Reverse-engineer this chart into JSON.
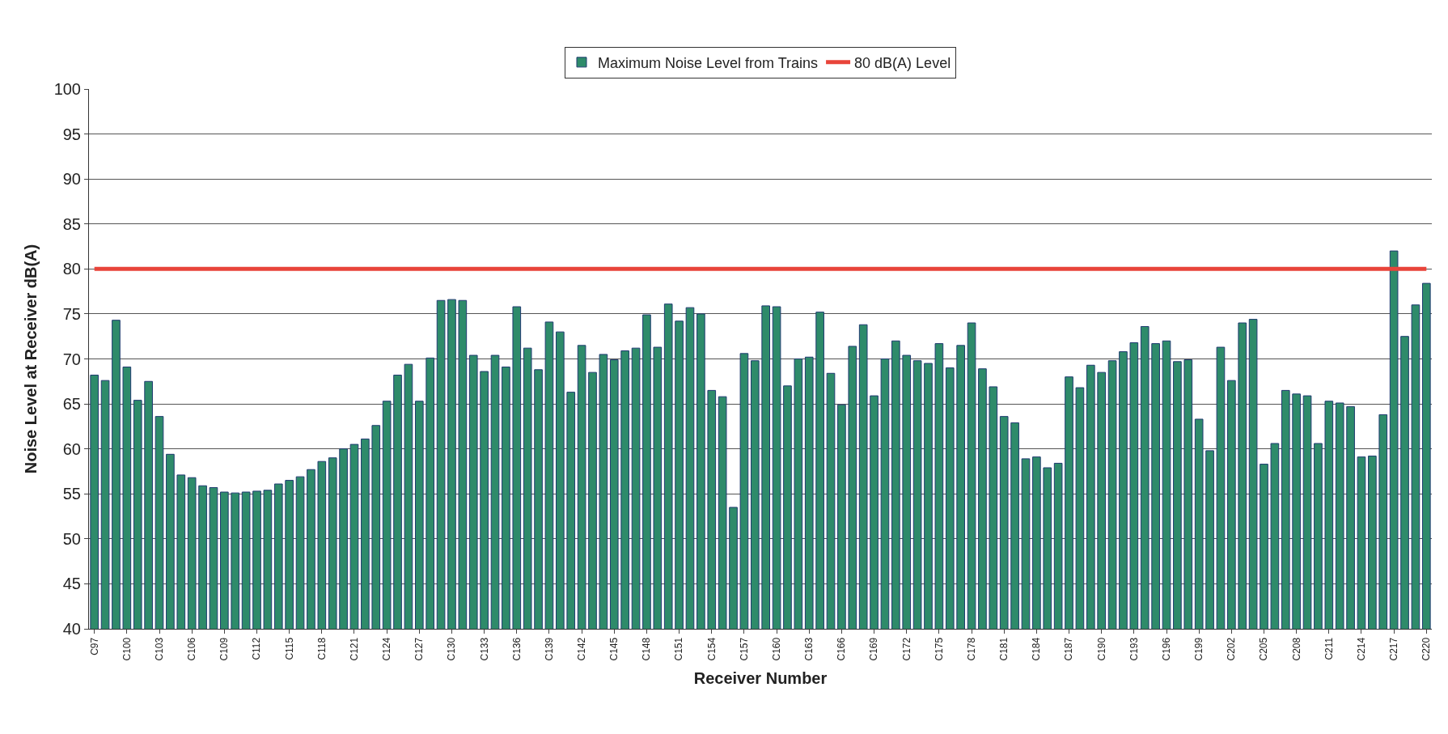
{
  "chart_data": {
    "type": "bar",
    "xlabel": "Receiver Number",
    "ylabel": "Noise Level at Receiver dB(A)",
    "categories": [
      "C97",
      null,
      null,
      "C100",
      null,
      null,
      "C103",
      null,
      null,
      "C106",
      null,
      null,
      "C109",
      null,
      null,
      "C112",
      null,
      null,
      "C115",
      null,
      null,
      "C118",
      null,
      null,
      "C121",
      null,
      null,
      "C124",
      null,
      null,
      "C127",
      null,
      null,
      "C130",
      null,
      null,
      "C133",
      null,
      null,
      "C136",
      null,
      null,
      "C139",
      null,
      null,
      "C142",
      null,
      null,
      "C145",
      null,
      null,
      "C148",
      null,
      null,
      "C151",
      null,
      null,
      "C154",
      null,
      null,
      "C157",
      null,
      null,
      "C160",
      null,
      null,
      "C163",
      null,
      null,
      "C166",
      null,
      null,
      "C169",
      null,
      null,
      "C172",
      null,
      null,
      "C175",
      null,
      null,
      "C178",
      null,
      null,
      "C181",
      null,
      null,
      "C184",
      null,
      null,
      "C187",
      null,
      null,
      "C190",
      null,
      null,
      "C193",
      null,
      null,
      "C196",
      null,
      null,
      "C199",
      null,
      null,
      "C202",
      null,
      null,
      "C205",
      null,
      null,
      "C208",
      null,
      null,
      "C211",
      null,
      null,
      "C214",
      null,
      null,
      "C217",
      null,
      null,
      "C220"
    ],
    "series": [
      {
        "name": "Maximum Noise Level from Trains",
        "color": "#2e8b6a",
        "values": [
          68.2,
          67.6,
          74.3,
          69.1,
          65.4,
          67.5,
          63.6,
          59.4,
          57.1,
          56.8,
          55.9,
          55.7,
          55.2,
          55.1,
          55.2,
          55.3,
          55.4,
          56.1,
          56.5,
          56.9,
          57.7,
          58.6,
          59.0,
          60.0,
          60.5,
          61.1,
          62.6,
          65.3,
          68.2,
          69.4,
          65.3,
          70.1,
          76.5,
          76.6,
          76.5,
          70.4,
          68.6,
          70.4,
          69.1,
          75.8,
          71.2,
          68.8,
          74.1,
          73.0,
          66.3,
          71.5,
          68.5,
          70.5,
          69.9,
          70.9,
          71.2,
          74.9,
          71.3,
          76.1,
          74.2,
          75.7,
          75.0,
          66.5,
          65.8,
          53.5,
          70.6,
          69.8,
          75.9,
          75.8,
          67.0,
          70.0,
          70.2,
          75.2,
          68.4,
          64.9,
          71.4,
          73.8,
          65.9,
          70.0,
          72.0,
          70.4,
          69.8,
          69.5,
          71.7,
          69.0,
          71.5,
          74.0,
          68.9,
          66.9,
          63.6,
          62.9,
          58.9,
          59.1,
          57.9,
          58.4,
          68.0,
          66.8,
          69.3,
          68.5,
          69.8,
          70.8,
          71.8,
          73.6,
          71.7,
          72.0,
          69.7,
          69.9,
          63.3,
          59.8,
          71.3,
          67.6,
          74.0,
          74.4,
          58.3,
          60.6,
          66.5,
          66.1,
          65.9,
          60.6,
          65.3,
          65.1,
          64.7,
          59.1,
          59.2,
          63.8,
          82.0,
          72.5,
          76.0,
          78.4
        ]
      },
      {
        "name": "80 dB(A) Level",
        "type": "line",
        "color": "#e8443a",
        "values": [
          80,
          80,
          80,
          80,
          80,
          80,
          80,
          80,
          80,
          80,
          80,
          80,
          80,
          80,
          80,
          80,
          80,
          80,
          80,
          80,
          80,
          80,
          80,
          80,
          80,
          80,
          80,
          80,
          80,
          80,
          80,
          80,
          80,
          80,
          80,
          80,
          80,
          80,
          80,
          80,
          80,
          80,
          80,
          80,
          80,
          80,
          80,
          80,
          80,
          80,
          80,
          80,
          80,
          80,
          80,
          80,
          80,
          80,
          80,
          80,
          80,
          80,
          80,
          80,
          80,
          80,
          80,
          80,
          80,
          80,
          80,
          80,
          80,
          80,
          80,
          80,
          80,
          80,
          80,
          80,
          80,
          80,
          80,
          80,
          80,
          80,
          80,
          80,
          80,
          80,
          80,
          80,
          80,
          80,
          80,
          80,
          80,
          80,
          80,
          80,
          80,
          80,
          80,
          80,
          80,
          80,
          80,
          80,
          80,
          80,
          80,
          80,
          80,
          80,
          80,
          80,
          80,
          80,
          80,
          80,
          80,
          80,
          80,
          80
        ]
      }
    ],
    "ylim": [
      40,
      100
    ],
    "yticks": [
      40,
      45,
      50,
      55,
      60,
      65,
      70,
      75,
      80,
      85,
      90,
      95,
      100
    ],
    "grid": "y",
    "legend": "top",
    "marker": "none",
    "line_style": "solid"
  }
}
